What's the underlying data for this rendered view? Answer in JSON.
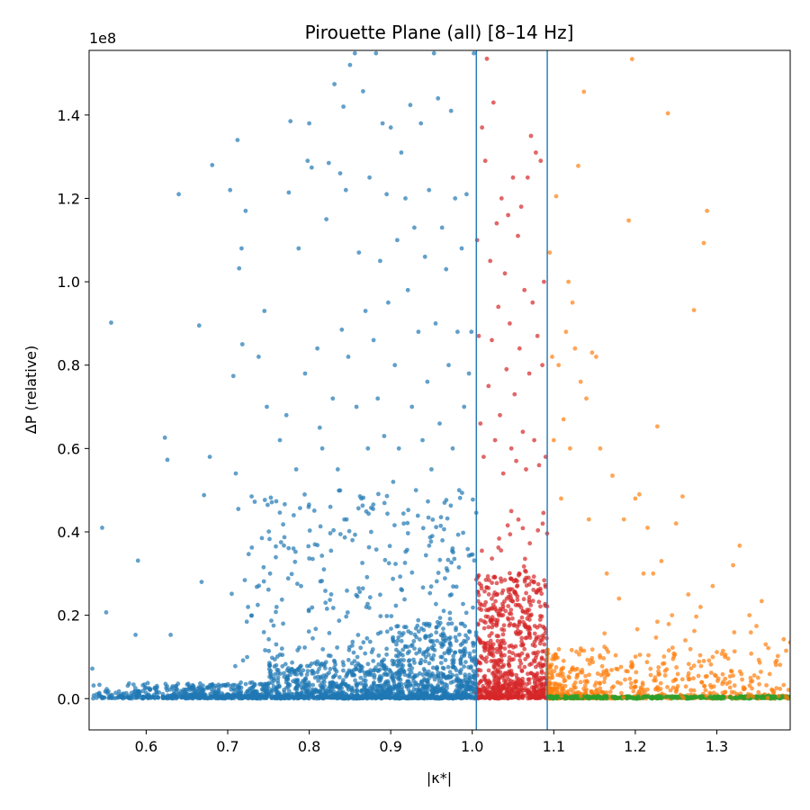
{
  "chart_data": {
    "type": "scatter",
    "title": "Pirouette Plane (all)  [8–14 Hz]",
    "xlabel": "|κ*|",
    "ylabel": "ΔP (relative)",
    "y_offset_label": "1e8",
    "xlim": [
      0.53,
      1.39
    ],
    "ylim": [
      -0.075,
      1.555
    ],
    "x_ticks": [
      0.6,
      0.7,
      0.8,
      0.9,
      1.0,
      1.1,
      1.2,
      1.3
    ],
    "x_tick_labels": [
      "0.6",
      "0.7",
      "0.8",
      "0.9",
      "1.0",
      "1.1",
      "1.2",
      "1.3"
    ],
    "y_ticks": [
      0.0,
      0.2,
      0.4,
      0.6,
      0.8,
      1.0,
      1.2,
      1.4
    ],
    "y_tick_labels": [
      "0.0",
      "0.2",
      "0.4",
      "0.6",
      "0.8",
      "1.0",
      "1.2",
      "1.4"
    ],
    "grid": false,
    "vertical_lines": [
      1.005,
      1.092
    ],
    "vertical_line_color": "#1f77b4",
    "series": [
      {
        "color": "#1f77b4",
        "x_range": [
          0.53,
          1.005
        ],
        "points": [
          [
            0.534,
            0.072
          ],
          [
            0.546,
            0.41
          ],
          [
            0.551,
            0.207
          ],
          [
            0.557,
            0.902
          ],
          [
            0.587,
            0.153
          ],
          [
            0.59,
            0.331
          ],
          [
            0.623,
            0.626
          ],
          [
            0.626,
            0.573
          ],
          [
            0.63,
            0.153
          ],
          [
            0.64,
            1.21
          ],
          [
            0.665,
            0.895
          ],
          [
            0.668,
            0.28
          ],
          [
            0.671,
            0.488
          ],
          [
            0.678,
            0.58
          ],
          [
            0.681,
            1.28
          ],
          [
            0.703,
            1.22
          ],
          [
            0.707,
            0.774
          ],
          [
            0.71,
            0.54
          ],
          [
            0.712,
            1.34
          ],
          [
            0.713,
            0.455
          ],
          [
            0.714,
            1.032
          ],
          [
            0.717,
            1.08
          ],
          [
            0.718,
            0.85
          ],
          [
            0.722,
            1.17
          ],
          [
            0.725,
            0.22
          ],
          [
            0.738,
            0.82
          ],
          [
            0.742,
            0.385
          ],
          [
            0.745,
            0.93
          ],
          [
            0.748,
            0.7
          ],
          [
            0.752,
            0.3
          ],
          [
            0.76,
            0.22
          ],
          [
            0.764,
            0.62
          ],
          [
            0.768,
            0.18
          ],
          [
            0.772,
            0.68
          ],
          [
            0.775,
            1.214
          ],
          [
            0.777,
            1.385
          ],
          [
            0.781,
            0.44
          ],
          [
            0.784,
            0.55
          ],
          [
            0.787,
            1.08
          ],
          [
            0.79,
            0.27
          ],
          [
            0.795,
            0.78
          ],
          [
            0.798,
            1.29
          ],
          [
            0.8,
            1.38
          ],
          [
            0.803,
            1.274
          ],
          [
            0.807,
            0.37
          ],
          [
            0.81,
            0.84
          ],
          [
            0.813,
            0.65
          ],
          [
            0.816,
            0.6
          ],
          [
            0.818,
            0.31
          ],
          [
            0.821,
            1.15
          ],
          [
            0.824,
            1.285
          ],
          [
            0.826,
            0.46
          ],
          [
            0.829,
            0.72
          ],
          [
            0.831,
            1.474
          ],
          [
            0.835,
            0.55
          ],
          [
            0.838,
            1.26
          ],
          [
            0.84,
            0.885
          ],
          [
            0.842,
            1.42
          ],
          [
            0.845,
            1.22
          ],
          [
            0.848,
            0.82
          ],
          [
            0.85,
            1.52
          ],
          [
            0.853,
            0.38
          ],
          [
            0.856,
            1.548
          ],
          [
            0.858,
            0.7
          ],
          [
            0.861,
            1.07
          ],
          [
            0.864,
            0.48
          ],
          [
            0.866,
            1.457
          ],
          [
            0.869,
            0.93
          ],
          [
            0.872,
            0.6
          ],
          [
            0.874,
            1.25
          ],
          [
            0.876,
            0.4
          ],
          [
            0.879,
            0.86
          ],
          [
            0.882,
            1.548
          ],
          [
            0.884,
            0.72
          ],
          [
            0.887,
            1.05
          ],
          [
            0.89,
            1.38
          ],
          [
            0.892,
            0.63
          ],
          [
            0.895,
            1.21
          ],
          [
            0.897,
            0.95
          ],
          [
            0.9,
            1.37
          ],
          [
            0.903,
            0.52
          ],
          [
            0.905,
            0.8
          ],
          [
            0.908,
            1.1
          ],
          [
            0.91,
            0.6
          ],
          [
            0.913,
            1.31
          ],
          [
            0.916,
            0.42
          ],
          [
            0.918,
            1.2
          ],
          [
            0.921,
            0.98
          ],
          [
            0.924,
            1.424
          ],
          [
            0.926,
            0.7
          ],
          [
            0.929,
            1.13
          ],
          [
            0.931,
            0.5
          ],
          [
            0.934,
            0.88
          ],
          [
            0.937,
            1.38
          ],
          [
            0.939,
            0.62
          ],
          [
            0.942,
            1.06
          ],
          [
            0.945,
            0.76
          ],
          [
            0.947,
            1.22
          ],
          [
            0.95,
            0.55
          ],
          [
            0.953,
            1.548
          ],
          [
            0.955,
            0.9
          ],
          [
            0.958,
            1.44
          ],
          [
            0.96,
            0.66
          ],
          [
            0.963,
            1.13
          ],
          [
            0.966,
            0.47
          ],
          [
            0.968,
            1.03
          ],
          [
            0.971,
            0.8
          ],
          [
            0.974,
            1.41
          ],
          [
            0.976,
            0.6
          ],
          [
            0.979,
            1.2
          ],
          [
            0.982,
            0.88
          ],
          [
            0.984,
            0.5
          ],
          [
            0.987,
            1.08
          ],
          [
            0.99,
            0.7
          ],
          [
            0.993,
            1.21
          ],
          [
            0.996,
            0.78
          ],
          [
            0.999,
            0.88
          ],
          [
            1.002,
            1.548
          ]
        ]
      },
      {
        "color": "#d62728",
        "x_range": [
          1.005,
          1.092
        ],
        "points": [
          [
            1.006,
            1.1
          ],
          [
            1.008,
            0.87
          ],
          [
            1.01,
            0.66
          ],
          [
            1.012,
            1.37
          ],
          [
            1.014,
            0.58
          ],
          [
            1.016,
            1.29
          ],
          [
            1.018,
            1.535
          ],
          [
            1.02,
            0.75
          ],
          [
            1.022,
            1.05
          ],
          [
            1.024,
            0.86
          ],
          [
            1.026,
            1.43
          ],
          [
            1.028,
            0.62
          ],
          [
            1.03,
            1.14
          ],
          [
            1.032,
            0.94
          ],
          [
            1.034,
            0.68
          ],
          [
            1.036,
            1.2
          ],
          [
            1.038,
            0.54
          ],
          [
            1.04,
            1.02
          ],
          [
            1.042,
            0.79
          ],
          [
            1.044,
            1.16
          ],
          [
            1.046,
            0.9
          ],
          [
            1.048,
            0.6
          ],
          [
            1.05,
            1.25
          ],
          [
            1.052,
            0.73
          ],
          [
            1.054,
            0.57
          ],
          [
            1.056,
            1.11
          ],
          [
            1.058,
            0.84
          ],
          [
            1.06,
            1.18
          ],
          [
            1.062,
            0.64
          ],
          [
            1.064,
            0.98
          ],
          [
            1.066,
            0.55
          ],
          [
            1.068,
            1.25
          ],
          [
            1.07,
            0.78
          ],
          [
            1.072,
            1.35
          ],
          [
            1.074,
            0.95
          ],
          [
            1.076,
            0.62
          ],
          [
            1.078,
            1.31
          ],
          [
            1.08,
            0.87
          ],
          [
            1.082,
            0.56
          ],
          [
            1.084,
            1.29
          ],
          [
            1.086,
            0.8
          ],
          [
            1.088,
            1.0
          ],
          [
            1.09,
            0.58
          ]
        ]
      },
      {
        "color": "#ff7f0e",
        "x_range": [
          1.092,
          1.39
        ],
        "points": [
          [
            1.095,
            1.07
          ],
          [
            1.098,
            0.82
          ],
          [
            1.1,
            0.62
          ],
          [
            1.103,
            1.205
          ],
          [
            1.106,
            0.8
          ],
          [
            1.109,
            0.48
          ],
          [
            1.112,
            0.67
          ],
          [
            1.115,
            0.88
          ],
          [
            1.118,
            1.0
          ],
          [
            1.12,
            0.6
          ],
          [
            1.123,
            0.95
          ],
          [
            1.126,
            0.84
          ],
          [
            1.13,
            1.278
          ],
          [
            1.133,
            0.76
          ],
          [
            1.137,
            1.456
          ],
          [
            1.14,
            0.72
          ],
          [
            1.143,
            0.43
          ],
          [
            1.147,
            0.83
          ],
          [
            1.152,
            0.82
          ],
          [
            1.157,
            0.6
          ],
          [
            1.165,
            0.3
          ],
          [
            1.172,
            0.535
          ],
          [
            1.18,
            0.24
          ],
          [
            1.186,
            0.43
          ],
          [
            1.192,
            1.147
          ],
          [
            1.196,
            1.534
          ],
          [
            1.2,
            0.48
          ],
          [
            1.205,
            0.49
          ],
          [
            1.21,
            0.3
          ],
          [
            1.215,
            0.41
          ],
          [
            1.222,
            0.3
          ],
          [
            1.227,
            0.653
          ],
          [
            1.232,
            0.33
          ],
          [
            1.24,
            1.404
          ],
          [
            1.245,
            0.2
          ],
          [
            1.25,
            0.42
          ],
          [
            1.258,
            0.485
          ],
          [
            1.265,
            0.25
          ],
          [
            1.272,
            0.932
          ],
          [
            1.28,
            0.22
          ],
          [
            1.284,
            1.093
          ],
          [
            1.288,
            1.17
          ],
          [
            1.295,
            0.27
          ],
          [
            1.31,
            0.1
          ],
          [
            1.32,
            0.32
          ],
          [
            1.328,
            0.367
          ],
          [
            1.34,
            0.2
          ],
          [
            1.355,
            0.234
          ],
          [
            1.36,
            0.13
          ],
          [
            1.385,
            0.115
          ]
        ]
      },
      {
        "color": "#2ca02c",
        "x_range": [
          1.092,
          1.39
        ],
        "points": []
      }
    ]
  }
}
